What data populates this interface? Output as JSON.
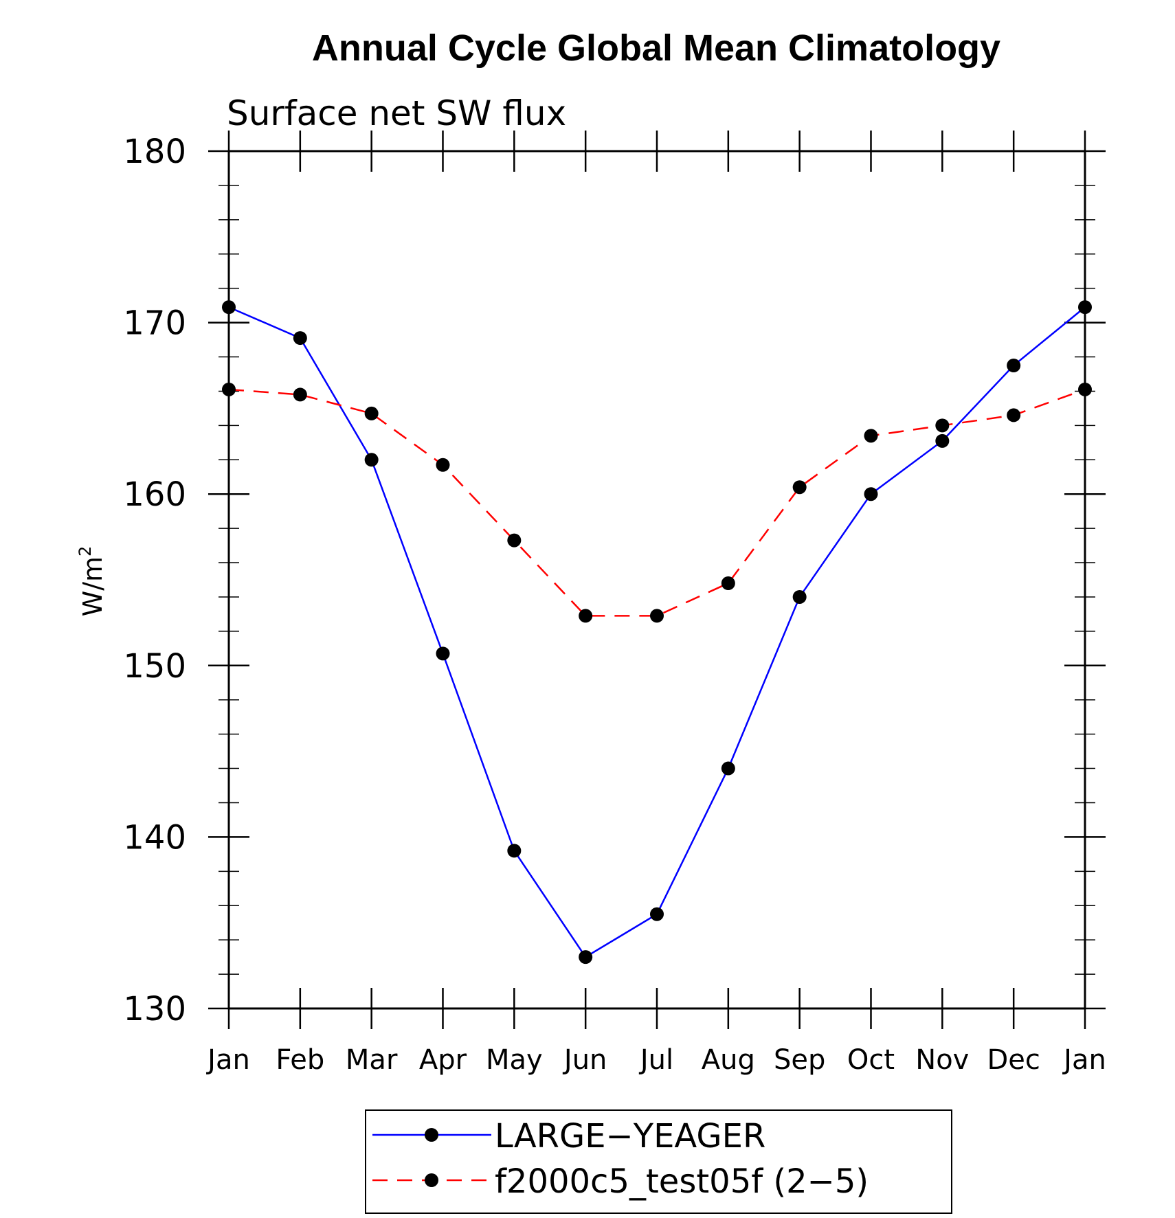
{
  "chart_data": {
    "type": "line",
    "title": "Annual Cycle Global Mean Climatology",
    "subtitle": "Surface net SW flux",
    "ylabel": "W/m",
    "ylabel_superscript": "2",
    "xlabel": "",
    "categories": [
      "Jan",
      "Feb",
      "Mar",
      "Apr",
      "May",
      "Jun",
      "Jul",
      "Aug",
      "Sep",
      "Oct",
      "Nov",
      "Dec",
      "Jan"
    ],
    "ylim": [
      130,
      180
    ],
    "yticks": [
      130,
      140,
      150,
      160,
      170,
      180
    ],
    "grid": false,
    "legend_position": "bottom",
    "series": [
      {
        "name": "LARGE−YEAGER",
        "color": "#0000ff",
        "dash": "solid",
        "marker": "filled-circle",
        "values": [
          170.9,
          169.1,
          162.0,
          150.7,
          139.2,
          133.0,
          135.5,
          144.0,
          154.0,
          160.0,
          163.1,
          167.5,
          170.9
        ]
      },
      {
        "name": "f2000c5_test05f (2−5)",
        "color": "#ff0000",
        "dash": "dashed",
        "marker": "filled-circle",
        "values": [
          166.1,
          165.8,
          164.7,
          161.7,
          157.3,
          152.9,
          152.9,
          154.8,
          160.4,
          163.4,
          164.0,
          164.6,
          166.1
        ]
      }
    ]
  }
}
